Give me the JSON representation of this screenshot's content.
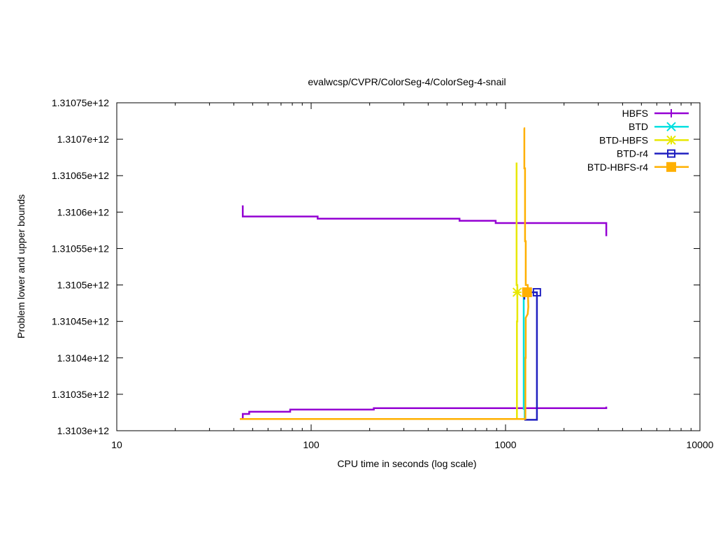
{
  "chart_data": {
    "type": "line",
    "title": "evalwcsp/CVPR/ColorSeg-4/ColorSeg-4-snail",
    "xlabel": "CPU time in seconds (log scale)",
    "ylabel": "Problem lower and upper bounds",
    "xscale": "log",
    "xlim": [
      10,
      10000
    ],
    "ylim": [
      1310300000000,
      1310750000000
    ],
    "xticks": [
      {
        "value": 10,
        "label": "10"
      },
      {
        "value": 100,
        "label": "100"
      },
      {
        "value": 1000,
        "label": "1000"
      },
      {
        "value": 10000,
        "label": "10000"
      }
    ],
    "yticks": [
      {
        "value": 1310300000000,
        "label": "1.3103e+12"
      },
      {
        "value": 1310350000000,
        "label": "1.31035e+12"
      },
      {
        "value": 1310400000000,
        "label": "1.3104e+12"
      },
      {
        "value": 1310450000000,
        "label": "1.31045e+12"
      },
      {
        "value": 1310500000000,
        "label": "1.3105e+12"
      },
      {
        "value": 1310550000000,
        "label": "1.31055e+12"
      },
      {
        "value": 1310600000000,
        "label": "1.3106e+12"
      },
      {
        "value": 1310650000000,
        "label": "1.31065e+12"
      },
      {
        "value": 1310700000000,
        "label": "1.3107e+12"
      },
      {
        "value": 1310750000000,
        "label": "1.31075e+12"
      }
    ],
    "grid": false,
    "legend_position": "top-right",
    "series": [
      {
        "name": "HBFS",
        "color": "#9400d3",
        "marker": "plus",
        "lines": [
          [
            [
              44,
              1310608000000
            ],
            [
              44.5,
              1310608000000
            ],
            [
              44.5,
              1310594000000
            ],
            [
              108,
              1310594000000
            ],
            [
              108,
              1310591000000
            ],
            [
              580,
              1310591000000
            ],
            [
              580,
              1310588000000
            ],
            [
              890,
              1310588000000
            ],
            [
              890,
              1310585000000
            ],
            [
              3300,
              1310585000000
            ],
            [
              3300,
              1310567000000
            ]
          ],
          [
            [
              44,
              1310317000000
            ],
            [
              44.5,
              1310317000000
            ],
            [
              44.5,
              1310323000000
            ],
            [
              48,
              1310323000000
            ],
            [
              48,
              1310326000000
            ],
            [
              78,
              1310326000000
            ],
            [
              78,
              1310329000000
            ],
            [
              210,
              1310329000000
            ],
            [
              210,
              1310331000000
            ],
            [
              3300,
              1310331000000
            ],
            [
              3300,
              1310333000000
            ]
          ]
        ]
      },
      {
        "name": "BTD",
        "color": "#00e0e0",
        "marker": "x",
        "lines": [
          [
            [
              1240,
              1310490000000
            ],
            [
              1240,
              1310330000000
            ],
            [
              1255,
              1310330000000
            ],
            [
              1255,
              1310315000000
            ]
          ]
        ]
      },
      {
        "name": "BTD-HBFS",
        "color": "#e8e800",
        "marker": "star",
        "lines": [
          [
            [
              1140,
              1310668000000
            ],
            [
              1140,
              1310500000000
            ],
            [
              1150,
              1310500000000
            ],
            [
              1150,
              1310450000000
            ],
            [
              1145,
              1310450000000
            ],
            [
              1145,
              1310315000000
            ]
          ],
          [
            [
              43,
              1310316000000
            ],
            [
              1145,
              1310316000000
            ]
          ]
        ],
        "marker_points": [
          [
            1148,
            1310490000000
          ]
        ]
      },
      {
        "name": "BTD-r4",
        "color": "#2020c0",
        "marker": "square",
        "lines": [
          [
            [
              1250,
              1310315000000
            ],
            [
              1450,
              1310315000000
            ],
            [
              1450,
              1310490000000
            ],
            [
              1250,
              1310490000000
            ],
            [
              1250,
              1310480000000
            ]
          ]
        ],
        "marker_points": [
          [
            1450,
            1310490000000
          ]
        ]
      },
      {
        "name": "BTD-HBFS-r4",
        "color": "#ffb000",
        "marker": "filled-square",
        "lines": [
          [
            [
              1240,
              1310715000000
            ],
            [
              1250,
              1310715000000
            ],
            [
              1250,
              1310660000000
            ],
            [
              1260,
              1310660000000
            ],
            [
              1260,
              1310560000000
            ],
            [
              1270,
              1310560000000
            ],
            [
              1270,
              1310500000000
            ],
            [
              1300,
              1310500000000
            ],
            [
              1310,
              1310470000000
            ],
            [
              1300,
              1310460000000
            ],
            [
              1270,
              1310455000000
            ],
            [
              1270,
              1310400000000
            ],
            [
              1265,
              1310400000000
            ],
            [
              1265,
              1310315000000
            ]
          ],
          [
            [
              43,
              1310316000000
            ],
            [
              1265,
              1310316000000
            ]
          ]
        ],
        "marker_points": [
          [
            1290,
            1310490000000
          ]
        ]
      }
    ]
  }
}
